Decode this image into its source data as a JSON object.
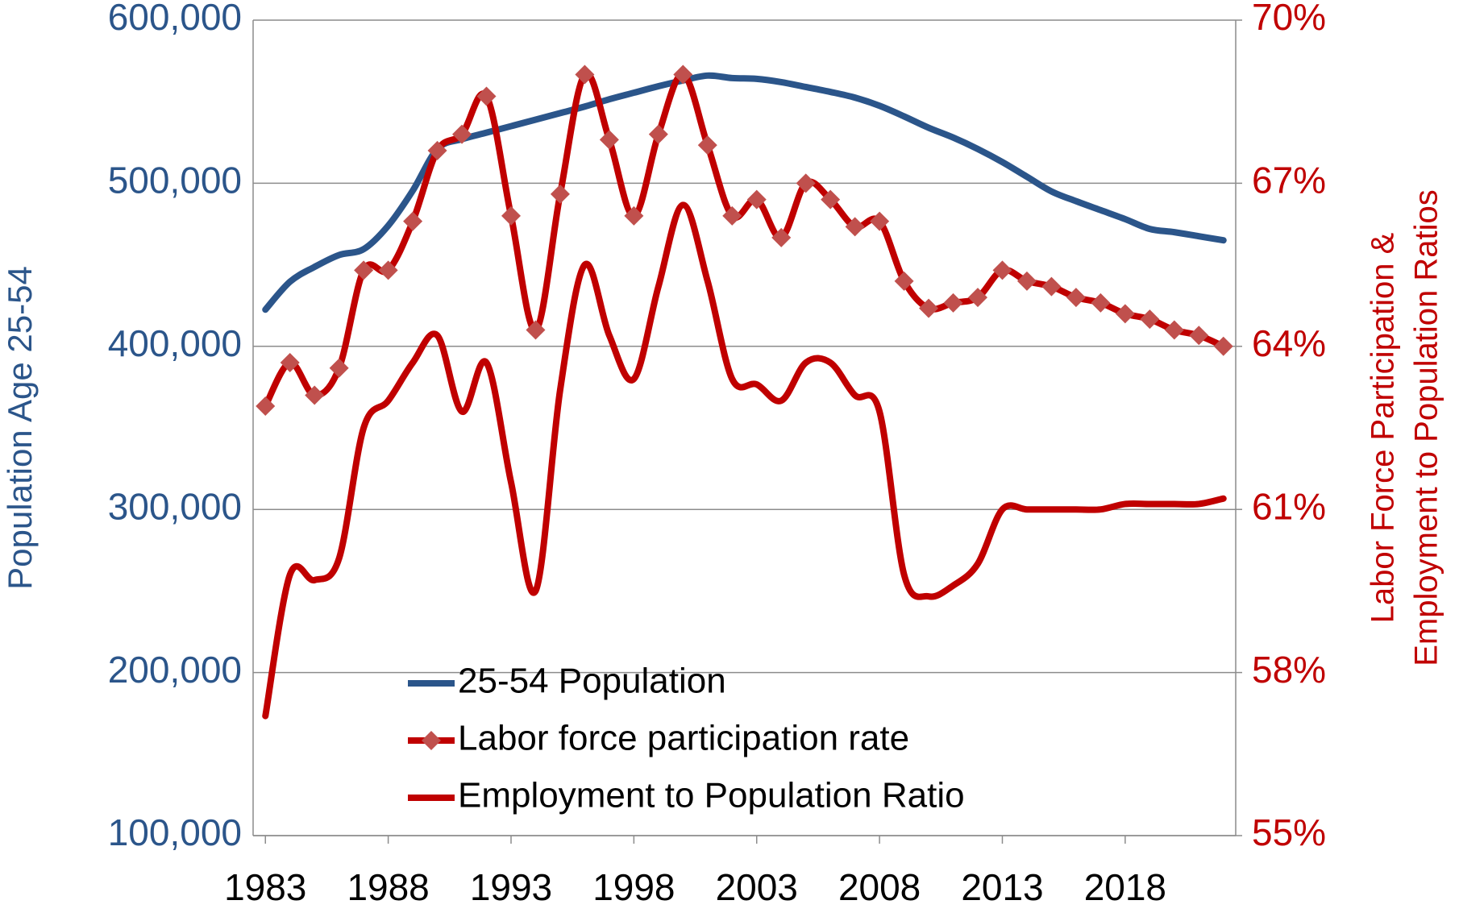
{
  "chart_data": {
    "type": "line",
    "smooth": true,
    "y_label": "Population Age 25-54",
    "y2_label": [
      "Labor Force Participation &",
      "Employment to Population Ratios"
    ],
    "x": [
      1983,
      1984,
      1985,
      1986,
      1987,
      1988,
      1989,
      1990,
      1991,
      1992,
      1993,
      1994,
      1995,
      1996,
      1997,
      1998,
      1999,
      2000,
      2001,
      2002,
      2003,
      2004,
      2005,
      2006,
      2007,
      2008,
      2009,
      2010,
      2011,
      2012,
      2013,
      2014,
      2015,
      2016,
      2017,
      2018,
      2019,
      2020,
      2021,
      2022
    ],
    "xlim": [
      1982.5,
      2022.5
    ],
    "xticks": [
      1983,
      1988,
      1993,
      1998,
      2003,
      2008,
      2013,
      2018
    ],
    "ylim": [
      100000,
      600000
    ],
    "yticks": [
      {
        "value": 100000,
        "label": "100,000"
      },
      {
        "value": 200000,
        "label": "200,000"
      },
      {
        "value": 300000,
        "label": "300,000"
      },
      {
        "value": 400000,
        "label": "400,000"
      },
      {
        "value": 500000,
        "label": "500,000"
      },
      {
        "value": 600000,
        "label": "600,000"
      }
    ],
    "y2lim": [
      55,
      70
    ],
    "y2ticks": [
      {
        "value": 55,
        "label": "55%"
      },
      {
        "value": 58,
        "label": "58%"
      },
      {
        "value": 61,
        "label": "61%"
      },
      {
        "value": 64,
        "label": "64%"
      },
      {
        "value": 67,
        "label": "67%"
      },
      {
        "value": 70,
        "label": "70%"
      }
    ],
    "grid": true,
    "y_color": "#2b558a",
    "y2_color": "#c00000",
    "series": [
      {
        "name": "25-54 Population",
        "color": "#2b558a",
        "values": [
          422500,
          439600,
          448700,
          456000,
          459600,
          474000,
          495500,
          521000,
          527000,
          531000,
          535000,
          539000,
          543000,
          547000,
          551500,
          555500,
          559500,
          563000,
          566000,
          564500,
          564000,
          562000,
          559000,
          556000,
          552500,
          547500,
          541000,
          534000,
          528000,
          521000,
          513000,
          504000,
          495000,
          489000,
          483500,
          478000,
          472000,
          470000,
          467500,
          465000
        ]
      },
      {
        "name": "Labor force participation rate",
        "color": "#c00000",
        "axis": "y2",
        "marker": "diamond",
        "marker_color": "#c0504d",
        "values": [
          62.9,
          63.7,
          63.1,
          63.6,
          65.4,
          65.4,
          66.3,
          67.6,
          67.9,
          68.6,
          66.4,
          64.3,
          66.8,
          69.0,
          67.8,
          66.4,
          67.9,
          69.0,
          67.7,
          66.4,
          66.7,
          66.0,
          67.0,
          66.7,
          66.2,
          66.3,
          65.2,
          64.7,
          64.8,
          64.9,
          65.4,
          65.2,
          65.1,
          64.9,
          64.8,
          64.6,
          64.5,
          64.3,
          64.2,
          64.0
        ]
      },
      {
        "name": "Employment to Population Ratio",
        "color": "#c00000",
        "axis": "y2",
        "values": [
          57.2,
          59.8,
          59.7,
          60.1,
          62.5,
          63.0,
          63.7,
          64.2,
          62.8,
          63.7,
          61.5,
          59.5,
          63.2,
          65.5,
          64.2,
          63.4,
          65.1,
          66.6,
          65.2,
          63.4,
          63.3,
          63.0,
          63.7,
          63.7,
          63.1,
          62.8,
          59.8,
          59.4,
          59.6,
          60.0,
          61.0,
          61.0,
          61.0,
          61.0,
          61.0,
          61.1,
          61.1,
          61.1,
          61.1,
          61.2
        ]
      }
    ]
  }
}
